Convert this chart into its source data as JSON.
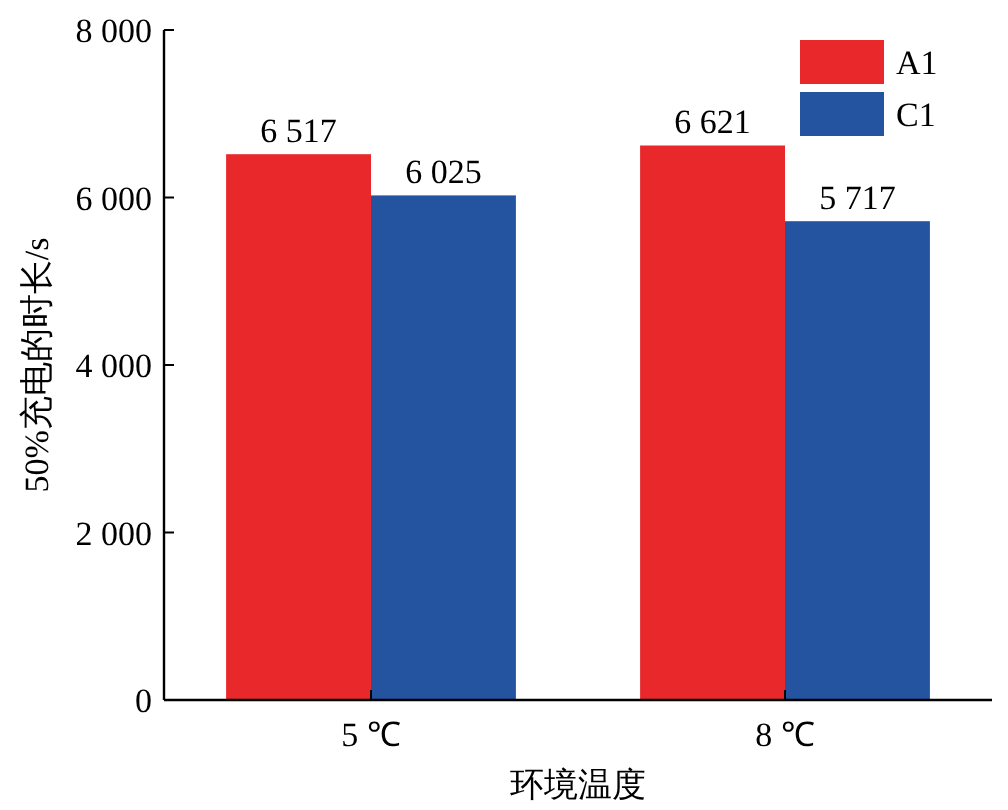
{
  "chart_data": {
    "type": "bar",
    "xlabel": "环境温度",
    "ylabel": "50%充电的时长/s",
    "categories": [
      "5 ℃",
      "8 ℃"
    ],
    "series": [
      {
        "name": "A1",
        "color": "#e8282b",
        "values": [
          6517,
          6621
        ],
        "value_labels": [
          "6 517",
          "6 621"
        ]
      },
      {
        "name": "C1",
        "color": "#2453a0",
        "values": [
          6025,
          5717
        ],
        "value_labels": [
          "6 025",
          "5 717"
        ]
      }
    ],
    "ylim": [
      0,
      8000
    ],
    "yticks": [
      {
        "value": 0,
        "label": "0"
      },
      {
        "value": 2000,
        "label": "2 000"
      },
      {
        "value": 4000,
        "label": "4 000"
      },
      {
        "value": 6000,
        "label": "6 000"
      },
      {
        "value": 8000,
        "label": "8 000"
      }
    ],
    "legend": "top right"
  }
}
